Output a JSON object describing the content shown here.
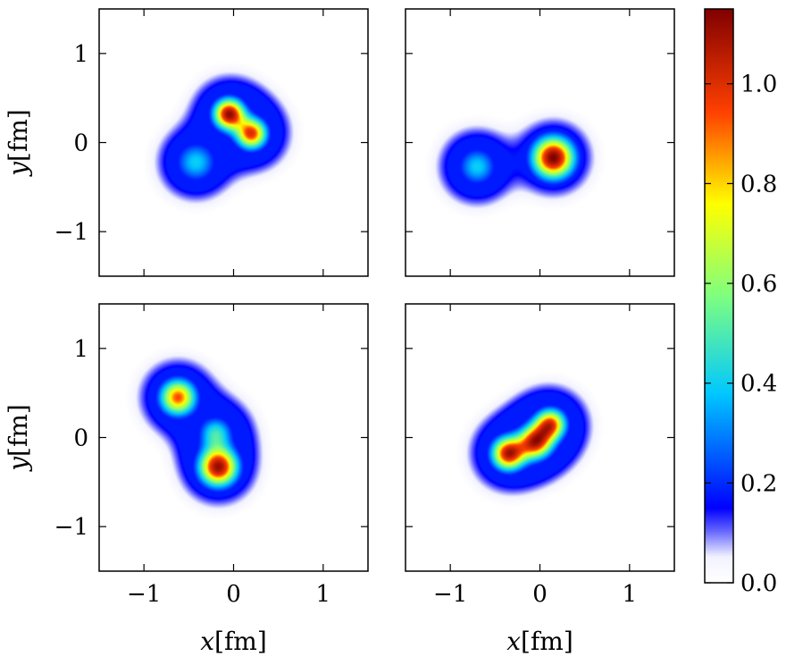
{
  "chart_data": {
    "type": "heatmap",
    "colormap": "jet",
    "colorbar": {
      "range": [
        0,
        1.15
      ],
      "ticks": [
        0.0,
        0.2,
        0.4,
        0.6,
        0.8,
        1.0
      ],
      "tick_labels": [
        "0.0",
        "0.2",
        "0.4",
        "0.6",
        "0.8",
        "1.0"
      ]
    },
    "xlabel_var": "x",
    "xlabel_unit": "[fm]",
    "ylabel_var": "y",
    "ylabel_unit": "[fm]",
    "xlim": [
      -1.5,
      1.5
    ],
    "ylim": [
      -1.5,
      1.5
    ],
    "xticks": [
      -1,
      0,
      1
    ],
    "xtick_labels": [
      "−1",
      "0",
      "1"
    ],
    "yticks": [
      -1,
      0,
      1
    ],
    "ytick_labels": [
      "−1",
      "0",
      "1"
    ],
    "grid": false,
    "panels": [
      {
        "position": "top-left",
        "blobs": [
          {
            "x": -0.05,
            "y": 0.32,
            "peak": 1.1,
            "width": 0.12
          },
          {
            "x": 0.2,
            "y": 0.1,
            "peak": 0.95,
            "width": 0.12
          },
          {
            "x": -0.42,
            "y": -0.22,
            "peak": 0.4,
            "width": 0.16
          }
        ]
      },
      {
        "position": "top-right",
        "blobs": [
          {
            "x": 0.15,
            "y": -0.17,
            "peak": 1.15,
            "width": 0.16
          },
          {
            "x": -0.7,
            "y": -0.27,
            "peak": 0.4,
            "width": 0.15
          }
        ]
      },
      {
        "position": "bottom-left",
        "blobs": [
          {
            "x": -0.62,
            "y": 0.45,
            "peak": 0.9,
            "width": 0.14
          },
          {
            "x": -0.17,
            "y": -0.33,
            "peak": 1.1,
            "width": 0.15
          },
          {
            "x": -0.2,
            "y": 0.05,
            "peak": 0.45,
            "width": 0.13
          }
        ]
      },
      {
        "position": "bottom-right",
        "blobs": [
          {
            "x": -0.35,
            "y": -0.18,
            "peak": 1.05,
            "width": 0.13
          },
          {
            "x": -0.05,
            "y": -0.05,
            "peak": 1.0,
            "width": 0.13
          },
          {
            "x": 0.12,
            "y": 0.15,
            "peak": 0.9,
            "width": 0.12
          }
        ]
      }
    ]
  }
}
